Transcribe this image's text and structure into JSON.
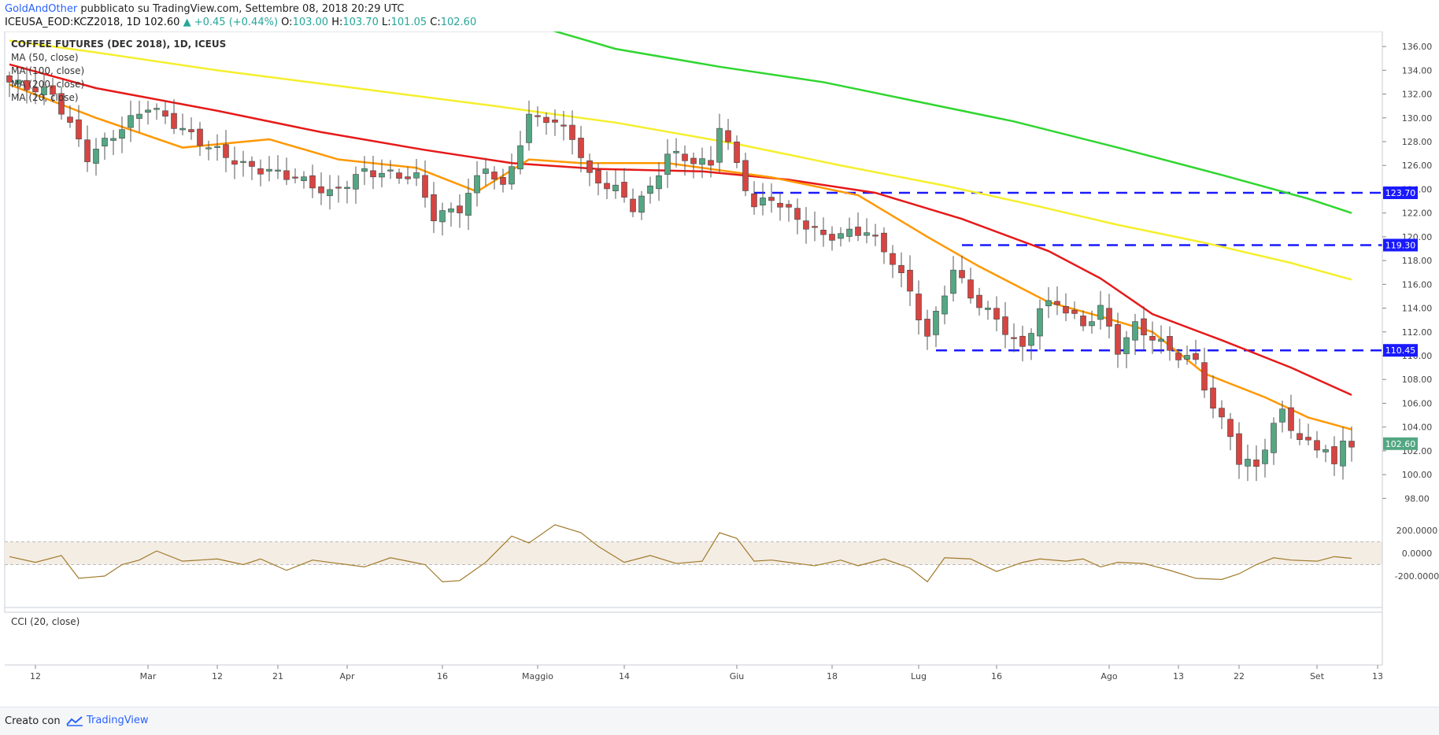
{
  "header": {
    "author": "GoldAndOther",
    "published": "pubblicato su TradingView.com, Settembre 08, 2018 20:29 UTC",
    "symbol": "ICEUSA_EOD:KCZ2018, 1D",
    "last": "102.60",
    "change": "+0.45 (+0.44%)",
    "o_label": "O:",
    "o_value": "103.00",
    "h_label": "H:",
    "h_value": "103.70",
    "l_label": "L:",
    "l_value": "101.05",
    "c_label": "C:",
    "c_value": "102.60"
  },
  "legend": {
    "title": "COFFEE FUTURES (DEC 2018), 1D, ICEUS",
    "ma50": "MA (50, close)",
    "ma100": "MA (100, close)",
    "ma200": "MA (200, close)",
    "ma20": "MA (20, close)"
  },
  "cci": {
    "label": "CCI (20, close)",
    "ticks": [
      "200.0000",
      "0.0000",
      "-200.0000"
    ]
  },
  "footer": {
    "created": "Creato con",
    "brand": "TradingView"
  },
  "colors": {
    "up": "#53a783",
    "down": "#d64541",
    "ma20": "#ff9800",
    "ma50": "#e61919",
    "ma100": "#f5ef2d",
    "ma200": "#2fd62f",
    "hline": "#1a1aff",
    "cci": "#a07a2a",
    "cci_band": "#f4ede4"
  },
  "chart_data": {
    "type": "candlestick",
    "title": "COFFEE FUTURES (DEC 2018), 1D, ICEUS",
    "yaxis": {
      "range": [
        96.5,
        137
      ],
      "ticks": [
        98,
        100,
        102,
        104,
        106,
        108,
        110,
        112,
        114,
        116,
        118,
        120,
        122,
        124,
        126,
        128,
        130,
        132,
        134,
        136
      ]
    },
    "xaxis": {
      "labels": [
        {
          "label": "12",
          "index": 3
        },
        {
          "label": "Mar",
          "index": 16
        },
        {
          "label": "12",
          "index": 24
        },
        {
          "label": "21",
          "index": 31
        },
        {
          "label": "Apr",
          "index": 39
        },
        {
          "label": "16",
          "index": 50
        },
        {
          "label": "Maggio",
          "index": 61
        },
        {
          "label": "14",
          "index": 71
        },
        {
          "label": "Giu",
          "index": 84
        },
        {
          "label": "18",
          "index": 95
        },
        {
          "label": "Lug",
          "index": 105
        },
        {
          "label": "16",
          "index": 114
        },
        {
          "label": "Ago",
          "index": 127
        },
        {
          "label": "13",
          "index": 135
        },
        {
          "label": "22",
          "index": 142
        },
        {
          "label": "Set",
          "index": 151
        },
        {
          "label": "13",
          "index": 158
        }
      ]
    },
    "horizontal_levels": [
      {
        "value": 123.7,
        "label": "123.70",
        "from_index": 86
      },
      {
        "value": 119.3,
        "label": "119.30",
        "from_index": 110
      },
      {
        "value": 110.45,
        "label": "110.45",
        "from_index": 107
      }
    ],
    "last_price_label": "102.60",
    "keypoints": [
      [
        0,
        133
      ],
      [
        5,
        132
      ],
      [
        9,
        126.7
      ],
      [
        14,
        129.8
      ],
      [
        16,
        131
      ],
      [
        22,
        128
      ],
      [
        27,
        126
      ],
      [
        33,
        125
      ],
      [
        37,
        123.6
      ],
      [
        41,
        125.5
      ],
      [
        47,
        125
      ],
      [
        49,
        121.7
      ],
      [
        52,
        122.4
      ],
      [
        55,
        126
      ],
      [
        57,
        124
      ],
      [
        60,
        130
      ],
      [
        62,
        130
      ],
      [
        65,
        128.5
      ],
      [
        67,
        125
      ],
      [
        70,
        124
      ],
      [
        72,
        122.5
      ],
      [
        74,
        124
      ],
      [
        76,
        127
      ],
      [
        81,
        126
      ],
      [
        82,
        129.5
      ],
      [
        86,
        122.5
      ],
      [
        88,
        123.3
      ],
      [
        91,
        121.5
      ],
      [
        94,
        120
      ],
      [
        99,
        120.5
      ],
      [
        102,
        118
      ],
      [
        104,
        115.3
      ],
      [
        106,
        111.5
      ],
      [
        109,
        117.3
      ],
      [
        111,
        115
      ],
      [
        114,
        113
      ],
      [
        117,
        110.5
      ],
      [
        119,
        114
      ],
      [
        121,
        114.5
      ],
      [
        124,
        112.5
      ],
      [
        126,
        114
      ],
      [
        128,
        110.5
      ],
      [
        130,
        112.5
      ],
      [
        132,
        111.5
      ],
      [
        135,
        110
      ],
      [
        137,
        109.5
      ],
      [
        139,
        105.5
      ],
      [
        141,
        103.5
      ],
      [
        142,
        101
      ],
      [
        144,
        100.8
      ],
      [
        146,
        104
      ],
      [
        147,
        105.4
      ],
      [
        149,
        102.8
      ],
      [
        152,
        102.2
      ],
      [
        153,
        100.5
      ],
      [
        154,
        103
      ],
      [
        155,
        102.6
      ]
    ],
    "ma20": [
      [
        0,
        132.8
      ],
      [
        10,
        130
      ],
      [
        20,
        127.5
      ],
      [
        30,
        128.2
      ],
      [
        38,
        126.5
      ],
      [
        47,
        125.8
      ],
      [
        54,
        123.8
      ],
      [
        60,
        126.5
      ],
      [
        66,
        126.2
      ],
      [
        76,
        126.2
      ],
      [
        88,
        125
      ],
      [
        98,
        123.5
      ],
      [
        106,
        120
      ],
      [
        112,
        117.5
      ],
      [
        120,
        114.5
      ],
      [
        126,
        113.3
      ],
      [
        132,
        112
      ],
      [
        138,
        108.5
      ],
      [
        145,
        106.5
      ],
      [
        150,
        104.8
      ],
      [
        155,
        103.8
      ]
    ],
    "ma50": [
      [
        0,
        134.5
      ],
      [
        10,
        132.5
      ],
      [
        24,
        130.6
      ],
      [
        36,
        128.8
      ],
      [
        48,
        127.3
      ],
      [
        58,
        126.2
      ],
      [
        68,
        125.7
      ],
      [
        80,
        125.5
      ],
      [
        90,
        124.8
      ],
      [
        100,
        123.7
      ],
      [
        110,
        121.5
      ],
      [
        120,
        118.8
      ],
      [
        126,
        116.5
      ],
      [
        132,
        113.5
      ],
      [
        140,
        111.3
      ],
      [
        148,
        109
      ],
      [
        155,
        106.7
      ]
    ],
    "ma100": [
      [
        0,
        136.5
      ],
      [
        10,
        135.5
      ],
      [
        24,
        134
      ],
      [
        40,
        132.5
      ],
      [
        56,
        131
      ],
      [
        70,
        129.6
      ],
      [
        84,
        127.8
      ],
      [
        96,
        126
      ],
      [
        108,
        124.3
      ],
      [
        118,
        122.7
      ],
      [
        128,
        121
      ],
      [
        138,
        119.5
      ],
      [
        148,
        117.8
      ],
      [
        155,
        116.4
      ]
    ],
    "ma200": [
      [
        62,
        137.5
      ],
      [
        70,
        135.8
      ],
      [
        82,
        134.3
      ],
      [
        94,
        133
      ],
      [
        104,
        131.5
      ],
      [
        116,
        129.7
      ],
      [
        128,
        127.5
      ],
      [
        140,
        125.2
      ],
      [
        150,
        123.2
      ],
      [
        155,
        122
      ]
    ],
    "cci": [
      [
        0,
        -30
      ],
      [
        3,
        -80
      ],
      [
        6,
        -20
      ],
      [
        8,
        -220
      ],
      [
        11,
        -200
      ],
      [
        13,
        -100
      ],
      [
        15,
        -60
      ],
      [
        17,
        20
      ],
      [
        20,
        -70
      ],
      [
        24,
        -50
      ],
      [
        27,
        -100
      ],
      [
        29,
        -50
      ],
      [
        32,
        -150
      ],
      [
        35,
        -60
      ],
      [
        38,
        -90
      ],
      [
        41,
        -120
      ],
      [
        44,
        -40
      ],
      [
        46,
        -70
      ],
      [
        48,
        -100
      ],
      [
        50,
        -250
      ],
      [
        52,
        -240
      ],
      [
        55,
        -80
      ],
      [
        58,
        150
      ],
      [
        60,
        90
      ],
      [
        63,
        250
      ],
      [
        66,
        180
      ],
      [
        68,
        60
      ],
      [
        71,
        -80
      ],
      [
        74,
        -20
      ],
      [
        77,
        -90
      ],
      [
        80,
        -70
      ],
      [
        82,
        180
      ],
      [
        84,
        130
      ],
      [
        86,
        -70
      ],
      [
        88,
        -60
      ],
      [
        90,
        -80
      ],
      [
        93,
        -110
      ],
      [
        96,
        -60
      ],
      [
        98,
        -110
      ],
      [
        101,
        -50
      ],
      [
        104,
        -130
      ],
      [
        106,
        -250
      ],
      [
        108,
        -40
      ],
      [
        111,
        -50
      ],
      [
        114,
        -160
      ],
      [
        117,
        -80
      ],
      [
        119,
        -50
      ],
      [
        122,
        -70
      ],
      [
        124,
        -50
      ],
      [
        126,
        -120
      ],
      [
        128,
        -80
      ],
      [
        131,
        -90
      ],
      [
        134,
        -150
      ],
      [
        137,
        -220
      ],
      [
        140,
        -230
      ],
      [
        142,
        -180
      ],
      [
        144,
        -100
      ],
      [
        146,
        -40
      ],
      [
        148,
        -60
      ],
      [
        151,
        -70
      ],
      [
        153,
        -30
      ],
      [
        155,
        -45
      ]
    ],
    "bbox_note": ""
  }
}
